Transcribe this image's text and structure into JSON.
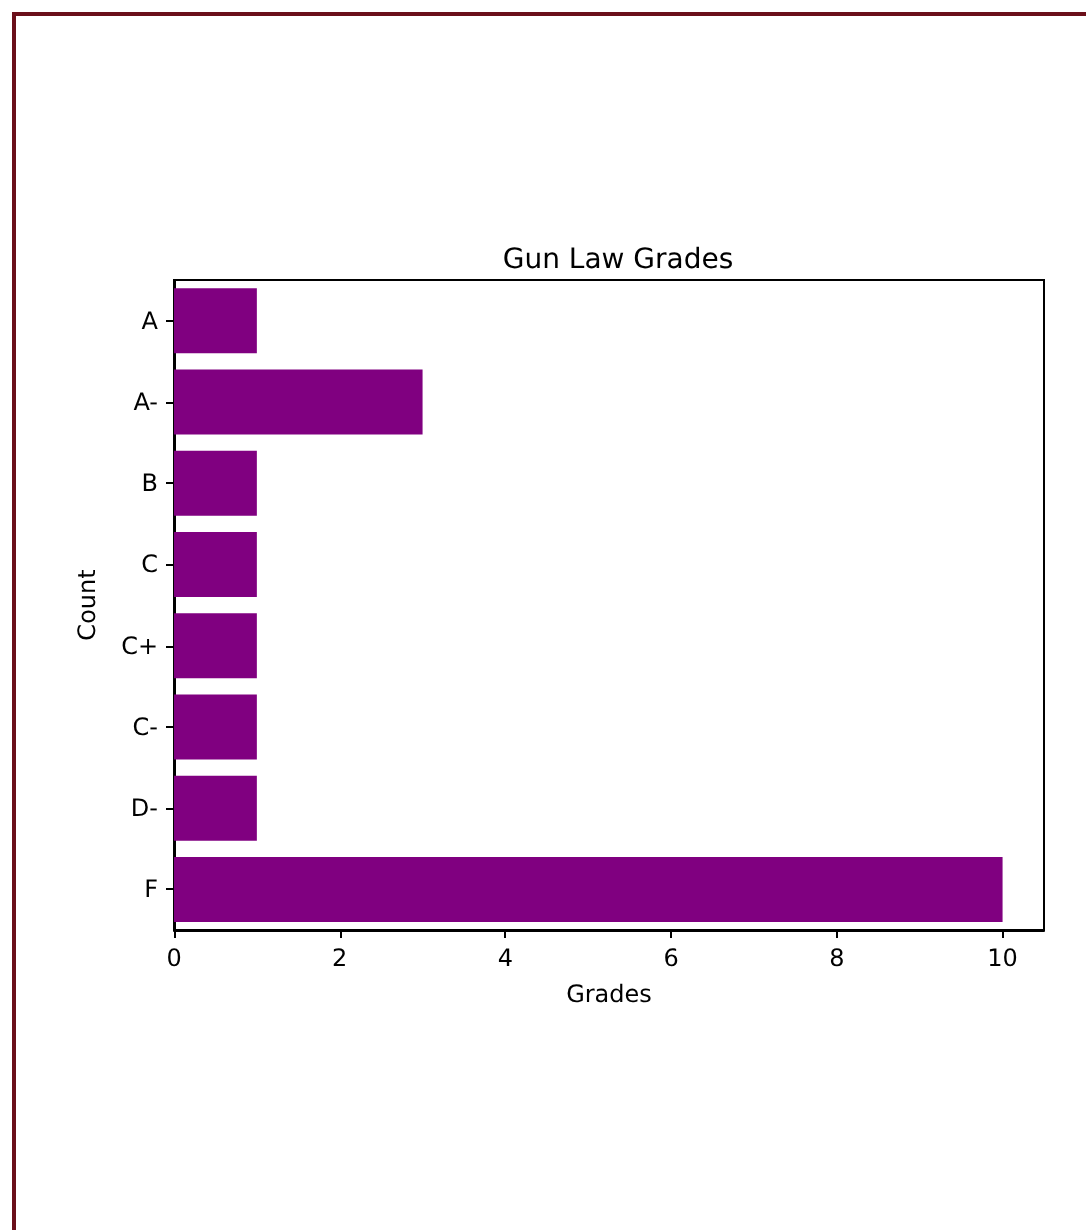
{
  "chart_data": {
    "type": "bar",
    "orientation": "horizontal",
    "title": "Gun Law Grades",
    "xlabel": "Grades",
    "ylabel": "Count",
    "categories": [
      "A",
      "A-",
      "B",
      "C",
      "C+",
      "C-",
      "D-",
      "F"
    ],
    "values": [
      1,
      3,
      1,
      1,
      1,
      1,
      1,
      10
    ],
    "color": "#800080",
    "xlim": [
      0,
      10.5
    ],
    "xticks": [
      0,
      2,
      4,
      6,
      8,
      10
    ],
    "grid": false
  }
}
